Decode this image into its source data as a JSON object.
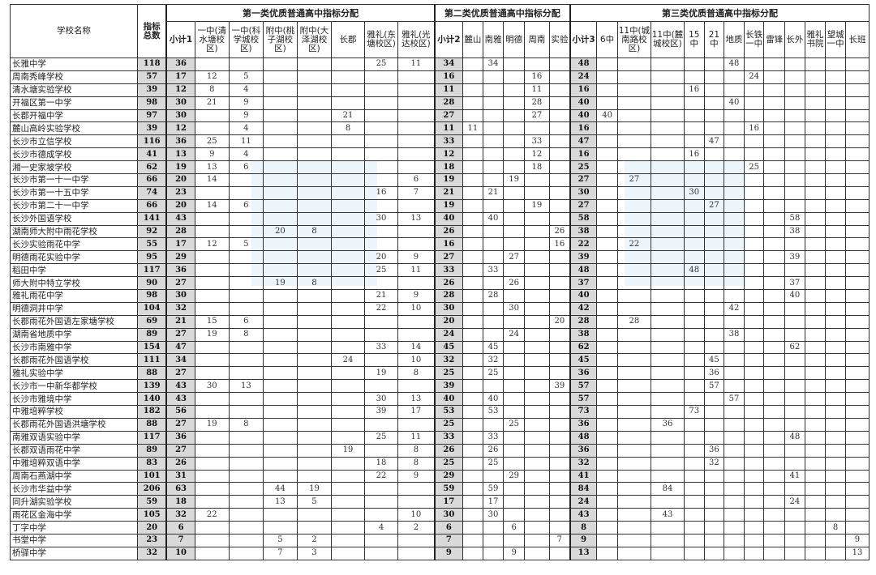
{
  "watermark": {
    "text": "长沙教育",
    "color": "#c8e1f5"
  },
  "colors": {
    "subtotal_bg": "#d9d9d9",
    "border": "#333333"
  },
  "header": {
    "school_name": "学校名称",
    "total": "指标总数",
    "groups": [
      "第一类优质普通高中指标分配",
      "第二类优质普通高中指标分配",
      "第三类优质普通高中指标分配"
    ],
    "columns": [
      "小计1",
      "一中(清水塘校区)",
      "一中(科学城校区)",
      "附中(桃子湖校区)",
      "附中(大泽湖校区)",
      "长郡",
      "雅礼(东塘校区)",
      "雅礼(光达校区)",
      "小计2",
      "麓山",
      "南雅",
      "明德",
      "周南",
      "实验",
      "小计3",
      "6中",
      "11中(城南路校区)",
      "11中(麓城校区)",
      "15中",
      "21中",
      "地质",
      "长铁一中",
      "雷锋",
      "长外",
      "雅礼书院",
      "望城一中",
      "长班"
    ]
  },
  "rows": [
    {
      "name": "长雅中学",
      "v": [
        "118",
        "36",
        "",
        "",
        "",
        "",
        "",
        "25",
        "11",
        "34",
        "",
        "34",
        "",
        "",
        "",
        "48",
        "",
        "",
        "",
        "",
        "",
        "48",
        "",
        "",
        "",
        "",
        "",
        ""
      ]
    },
    {
      "name": "周南秀峰学校",
      "v": [
        "57",
        "17",
        "12",
        "5",
        "",
        "",
        "",
        "",
        "",
        "16",
        "",
        "",
        "",
        "16",
        "",
        "24",
        "",
        "",
        "",
        "",
        "",
        "",
        "24",
        "",
        "",
        "",
        "",
        ""
      ]
    },
    {
      "name": "清水塘实验学校",
      "v": [
        "39",
        "12",
        "8",
        "4",
        "",
        "",
        "",
        "",
        "",
        "11",
        "",
        "",
        "",
        "11",
        "",
        "16",
        "",
        "",
        "",
        "16",
        "",
        "",
        "",
        "",
        "",
        "",
        "",
        ""
      ]
    },
    {
      "name": "开福区第一中学",
      "v": [
        "98",
        "30",
        "21",
        "9",
        "",
        "",
        "",
        "",
        "",
        "28",
        "",
        "",
        "",
        "28",
        "",
        "40",
        "",
        "",
        "",
        "",
        "",
        "40",
        "",
        "",
        "",
        "",
        "",
        ""
      ]
    },
    {
      "name": "长郡开福中学",
      "v": [
        "97",
        "30",
        "",
        "9",
        "",
        "",
        "21",
        "",
        "",
        "27",
        "",
        "",
        "",
        "27",
        "",
        "40",
        "40",
        "",
        "",
        "",
        "",
        "",
        "",
        "",
        "",
        "",
        "",
        ""
      ]
    },
    {
      "name": "麓山高岭实验学校",
      "v": [
        "39",
        "12",
        "",
        "4",
        "",
        "",
        "8",
        "",
        "",
        "11",
        "11",
        "",
        "",
        "",
        "",
        "16",
        "",
        "",
        "",
        "",
        "",
        "",
        "16",
        "",
        "",
        "",
        "",
        ""
      ]
    },
    {
      "name": "长沙市立信学校",
      "v": [
        "116",
        "36",
        "25",
        "11",
        "",
        "",
        "",
        "",
        "",
        "33",
        "",
        "",
        "",
        "33",
        "",
        "47",
        "",
        "",
        "",
        "",
        "47",
        "",
        "",
        "",
        "",
        "",
        "",
        ""
      ]
    },
    {
      "name": "长沙市德成学校",
      "v": [
        "41",
        "13",
        "9",
        "4",
        "",
        "",
        "",
        "",
        "",
        "12",
        "",
        "",
        "",
        "12",
        "",
        "16",
        "",
        "",
        "",
        "16",
        "",
        "",
        "",
        "",
        "",
        "",
        "",
        ""
      ]
    },
    {
      "name": "湘一史家坡学校",
      "v": [
        "62",
        "19",
        "13",
        "6",
        "",
        "",
        "",
        "",
        "",
        "18",
        "",
        "",
        "",
        "18",
        "",
        "25",
        "",
        "",
        "",
        "",
        "",
        "",
        "25",
        "",
        "",
        "",
        "",
        ""
      ]
    },
    {
      "name": "长沙市第一十一中学",
      "v": [
        "66",
        "20",
        "14",
        "",
        "",
        "",
        "",
        "",
        "6",
        "19",
        "",
        "",
        "19",
        "",
        "",
        "27",
        "",
        "27",
        "",
        "",
        "",
        "",
        "",
        "",
        "",
        "",
        "",
        ""
      ]
    },
    {
      "name": "长沙市第一十五中学",
      "v": [
        "74",
        "23",
        "",
        "",
        "",
        "",
        "",
        "16",
        "7",
        "21",
        "",
        "21",
        "",
        "",
        "",
        "30",
        "",
        "",
        "",
        "30",
        "",
        "",
        "",
        "",
        "",
        "",
        "",
        ""
      ]
    },
    {
      "name": "长沙市第二十一中学",
      "v": [
        "66",
        "20",
        "14",
        "6",
        "",
        "",
        "",
        "",
        "",
        "19",
        "",
        "",
        "",
        "19",
        "",
        "27",
        "",
        "",
        "",
        "",
        "27",
        "",
        "",
        "",
        "",
        "",
        "",
        ""
      ]
    },
    {
      "name": "长沙外国语学校",
      "v": [
        "141",
        "43",
        "",
        "",
        "",
        "",
        "",
        "30",
        "13",
        "40",
        "",
        "40",
        "",
        "",
        "",
        "58",
        "",
        "",
        "",
        "",
        "",
        "",
        "",
        "",
        "58",
        "",
        "",
        ""
      ]
    },
    {
      "name": "湖南师大附中雨花学校",
      "v": [
        "92",
        "28",
        "",
        "",
        "20",
        "8",
        "",
        "",
        "",
        "26",
        "",
        "",
        "",
        "",
        "26",
        "38",
        "",
        "",
        "",
        "",
        "",
        "",
        "",
        "",
        "38",
        "",
        "",
        ""
      ]
    },
    {
      "name": "长沙实验雨花中学",
      "v": [
        "55",
        "17",
        "12",
        "5",
        "",
        "",
        "",
        "",
        "",
        "16",
        "",
        "",
        "",
        "",
        "16",
        "22",
        "",
        "22",
        "",
        "",
        "",
        "",
        "",
        "",
        "",
        "",
        "",
        ""
      ]
    },
    {
      "name": "明德雨花实验中学",
      "v": [
        "95",
        "29",
        "",
        "",
        "",
        "",
        "",
        "20",
        "9",
        "27",
        "",
        "",
        "27",
        "",
        "",
        "39",
        "",
        "",
        "",
        "",
        "",
        "",
        "",
        "",
        "39",
        "",
        "",
        ""
      ]
    },
    {
      "name": "稻田中学",
      "v": [
        "117",
        "36",
        "",
        "",
        "",
        "",
        "",
        "25",
        "11",
        "33",
        "",
        "33",
        "",
        "",
        "",
        "48",
        "",
        "",
        "",
        "48",
        "",
        "",
        "",
        "",
        "",
        "",
        "",
        ""
      ]
    },
    {
      "name": "师大附中特立学校",
      "v": [
        "90",
        "27",
        "",
        "",
        "19",
        "8",
        "",
        "",
        "",
        "26",
        "",
        "",
        "26",
        "",
        "",
        "37",
        "",
        "",
        "",
        "",
        "",
        "",
        "",
        "",
        "37",
        "",
        "",
        ""
      ]
    },
    {
      "name": "雅礼雨花中学",
      "v": [
        "98",
        "30",
        "",
        "",
        "",
        "",
        "",
        "21",
        "9",
        "28",
        "",
        "28",
        "",
        "",
        "",
        "40",
        "",
        "",
        "",
        "",
        "",
        "",
        "",
        "",
        "40",
        "",
        "",
        ""
      ]
    },
    {
      "name": "明德洞井中学",
      "v": [
        "104",
        "32",
        "",
        "",
        "",
        "",
        "",
        "22",
        "10",
        "30",
        "",
        "",
        "30",
        "",
        "",
        "42",
        "",
        "",
        "",
        "",
        "",
        "42",
        "",
        "",
        "",
        "",
        "",
        ""
      ]
    },
    {
      "name": "长郡雨花外国语左家塘学校",
      "v": [
        "69",
        "21",
        "15",
        "6",
        "",
        "",
        "",
        "",
        "",
        "20",
        "",
        "",
        "",
        "",
        "20",
        "28",
        "",
        "28",
        "",
        "",
        "",
        "",
        "",
        "",
        "",
        "",
        "",
        ""
      ]
    },
    {
      "name": "湖南省地质中学",
      "v": [
        "89",
        "27",
        "19",
        "8",
        "",
        "",
        "",
        "",
        "",
        "24",
        "",
        "",
        "24",
        "",
        "",
        "38",
        "",
        "",
        "",
        "",
        "",
        "38",
        "",
        "",
        "",
        "",
        "",
        ""
      ]
    },
    {
      "name": "长沙市南雅中学",
      "v": [
        "154",
        "47",
        "",
        "",
        "",
        "",
        "",
        "33",
        "14",
        "45",
        "",
        "45",
        "",
        "",
        "",
        "62",
        "",
        "",
        "",
        "",
        "",
        "",
        "",
        "",
        "62",
        "",
        "",
        ""
      ]
    },
    {
      "name": "长郡雨花外国语学校",
      "v": [
        "111",
        "34",
        "",
        "",
        "",
        "",
        "24",
        "",
        "10",
        "32",
        "",
        "32",
        "",
        "",
        "",
        "45",
        "",
        "",
        "",
        "",
        "45",
        "",
        "",
        "",
        "",
        "",
        "",
        ""
      ]
    },
    {
      "name": "雅礼实验中学",
      "v": [
        "88",
        "27",
        "",
        "",
        "",
        "",
        "",
        "19",
        "8",
        "25",
        "",
        "25",
        "",
        "",
        "",
        "36",
        "",
        "",
        "",
        "",
        "36",
        "",
        "",
        "",
        "",
        "",
        "",
        ""
      ]
    },
    {
      "name": "长沙市一中新华都学校",
      "v": [
        "139",
        "43",
        "30",
        "13",
        "",
        "",
        "",
        "",
        "",
        "39",
        "",
        "",
        "",
        "",
        "39",
        "57",
        "",
        "",
        "",
        "",
        "57",
        "",
        "",
        "",
        "",
        "",
        "",
        ""
      ]
    },
    {
      "name": "长沙市雅境中学",
      "v": [
        "140",
        "43",
        "",
        "",
        "",
        "",
        "",
        "30",
        "13",
        "40",
        "",
        "40",
        "",
        "",
        "",
        "57",
        "",
        "",
        "",
        "",
        "",
        "57",
        "",
        "",
        "",
        "",
        "",
        ""
      ]
    },
    {
      "name": "中雅培粹学校",
      "v": [
        "182",
        "56",
        "",
        "",
        "",
        "",
        "",
        "39",
        "17",
        "53",
        "",
        "53",
        "",
        "",
        "",
        "73",
        "",
        "",
        "",
        "73",
        "",
        "",
        "",
        "",
        "",
        "",
        "",
        ""
      ]
    },
    {
      "name": "长郡雨花外国语洪塘学校",
      "v": [
        "88",
        "27",
        "19",
        "8",
        "",
        "",
        "",
        "",
        "",
        "25",
        "",
        "",
        "25",
        "",
        "",
        "36",
        "",
        "",
        "36",
        "",
        "",
        "",
        "",
        "",
        "",
        "",
        "",
        ""
      ]
    },
    {
      "name": "南雅双语实验中学",
      "v": [
        "117",
        "36",
        "",
        "",
        "",
        "",
        "",
        "25",
        "11",
        "33",
        "",
        "33",
        "",
        "",
        "",
        "48",
        "",
        "",
        "",
        "",
        "",
        "",
        "",
        "",
        "48",
        "",
        "",
        ""
      ]
    },
    {
      "name": "长郡双语雨花中学",
      "v": [
        "89",
        "27",
        "",
        "",
        "",
        "",
        "19",
        "",
        "8",
        "26",
        "",
        "26",
        "",
        "",
        "",
        "36",
        "",
        "",
        "",
        "",
        "36",
        "",
        "",
        "",
        "",
        "",
        "",
        ""
      ]
    },
    {
      "name": "中雅培粹双语中学",
      "v": [
        "83",
        "26",
        "",
        "",
        "",
        "",
        "",
        "18",
        "8",
        "25",
        "",
        "25",
        "",
        "",
        "",
        "32",
        "",
        "",
        "",
        "",
        "32",
        "",
        "",
        "",
        "",
        "",
        "",
        ""
      ]
    },
    {
      "name": "周南石燕湖中学",
      "v": [
        "101",
        "31",
        "",
        "",
        "",
        "",
        "",
        "22",
        "9",
        "29",
        "",
        "",
        "29",
        "",
        "",
        "41",
        "",
        "",
        "",
        "",
        "",
        "",
        "",
        "",
        "41",
        "",
        "",
        ""
      ]
    },
    {
      "name": "长沙市华益中学",
      "v": [
        "206",
        "63",
        "",
        "",
        "44",
        "19",
        "",
        "",
        "",
        "59",
        "",
        "59",
        "",
        "",
        "",
        "84",
        "",
        "",
        "84",
        "",
        "",
        "",
        "",
        "",
        "",
        "",
        "",
        ""
      ]
    },
    {
      "name": "同升湖实验学校",
      "v": [
        "59",
        "18",
        "",
        "",
        "13",
        "5",
        "",
        "",
        "",
        "17",
        "",
        "17",
        "",
        "",
        "",
        "24",
        "",
        "",
        "",
        "",
        "",
        "",
        "",
        "",
        "24",
        "",
        "",
        ""
      ]
    },
    {
      "name": "雨花区金海中学",
      "v": [
        "105",
        "32",
        "22",
        "",
        "",
        "",
        "",
        "",
        "10",
        "30",
        "",
        "30",
        "",
        "",
        "",
        "43",
        "",
        "",
        "43",
        "",
        "",
        "",
        "",
        "",
        "",
        "",
        "",
        ""
      ]
    },
    {
      "name": "丁字中学",
      "v": [
        "20",
        "6",
        "",
        "",
        "",
        "",
        "",
        "4",
        "2",
        "6",
        "",
        "",
        "6",
        "",
        "",
        "8",
        "",
        "",
        "",
        "",
        "",
        "",
        "",
        "",
        "",
        "",
        "8",
        ""
      ]
    },
    {
      "name": "书堂中学",
      "v": [
        "23",
        "7",
        "",
        "",
        "5",
        "2",
        "",
        "",
        "",
        "7",
        "",
        "",
        "",
        "",
        "7",
        "9",
        "",
        "",
        "",
        "",
        "",
        "",
        "",
        "",
        "",
        "",
        "",
        "9"
      ]
    },
    {
      "name": "桥驿中学",
      "v": [
        "32",
        "10",
        "",
        "",
        "7",
        "3",
        "",
        "",
        "",
        "9",
        "",
        "",
        "9",
        "",
        "",
        "13",
        "",
        "",
        "",
        "",
        "",
        "",
        "",
        "",
        "",
        "",
        "",
        "13"
      ]
    }
  ]
}
